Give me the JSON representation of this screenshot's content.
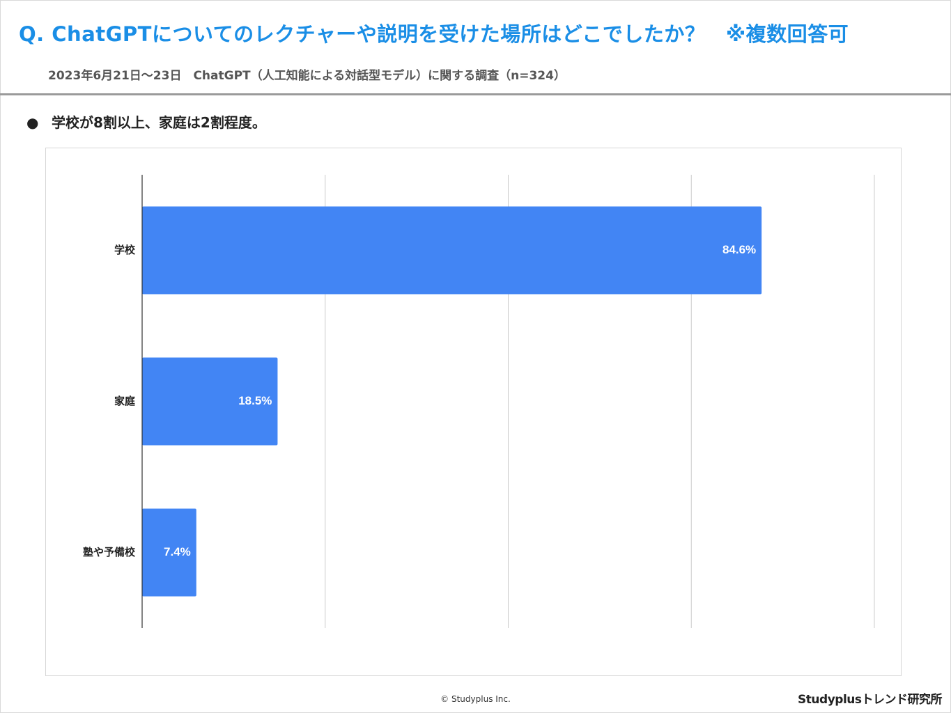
{
  "header": {
    "question": "Q. ChatGPTについてのレクチャーや説明を受けた場所はどこでしたか？　※複数回答可",
    "subtitle": "2023年6月21日～23日　ChatGPT（人工知能による対話型モデル）に関する調査（n=324）"
  },
  "summary": {
    "bullet": "●",
    "text": "学校が8割以上、家庭は2割程度。"
  },
  "chart_data": {
    "type": "bar",
    "orientation": "horizontal",
    "categories": [
      "学校",
      "家庭",
      "塾や予備校"
    ],
    "values": [
      84.6,
      18.5,
      7.4
    ],
    "value_labels": [
      "84.6%",
      "18.5%",
      "7.4%"
    ],
    "unit": "%",
    "xlim": [
      0,
      100
    ],
    "gridlines": [
      0,
      25,
      50,
      75,
      100
    ],
    "grid": true,
    "bar_color": "#4285f4",
    "label_color": "#ffffff",
    "title": "",
    "xlabel": "",
    "ylabel": ""
  },
  "footer": {
    "copyright": "© Studyplus Inc.",
    "brand": "Studyplusトレンド研究所"
  },
  "colors": {
    "title": "#1a8ee6",
    "bar": "#4285f4"
  }
}
